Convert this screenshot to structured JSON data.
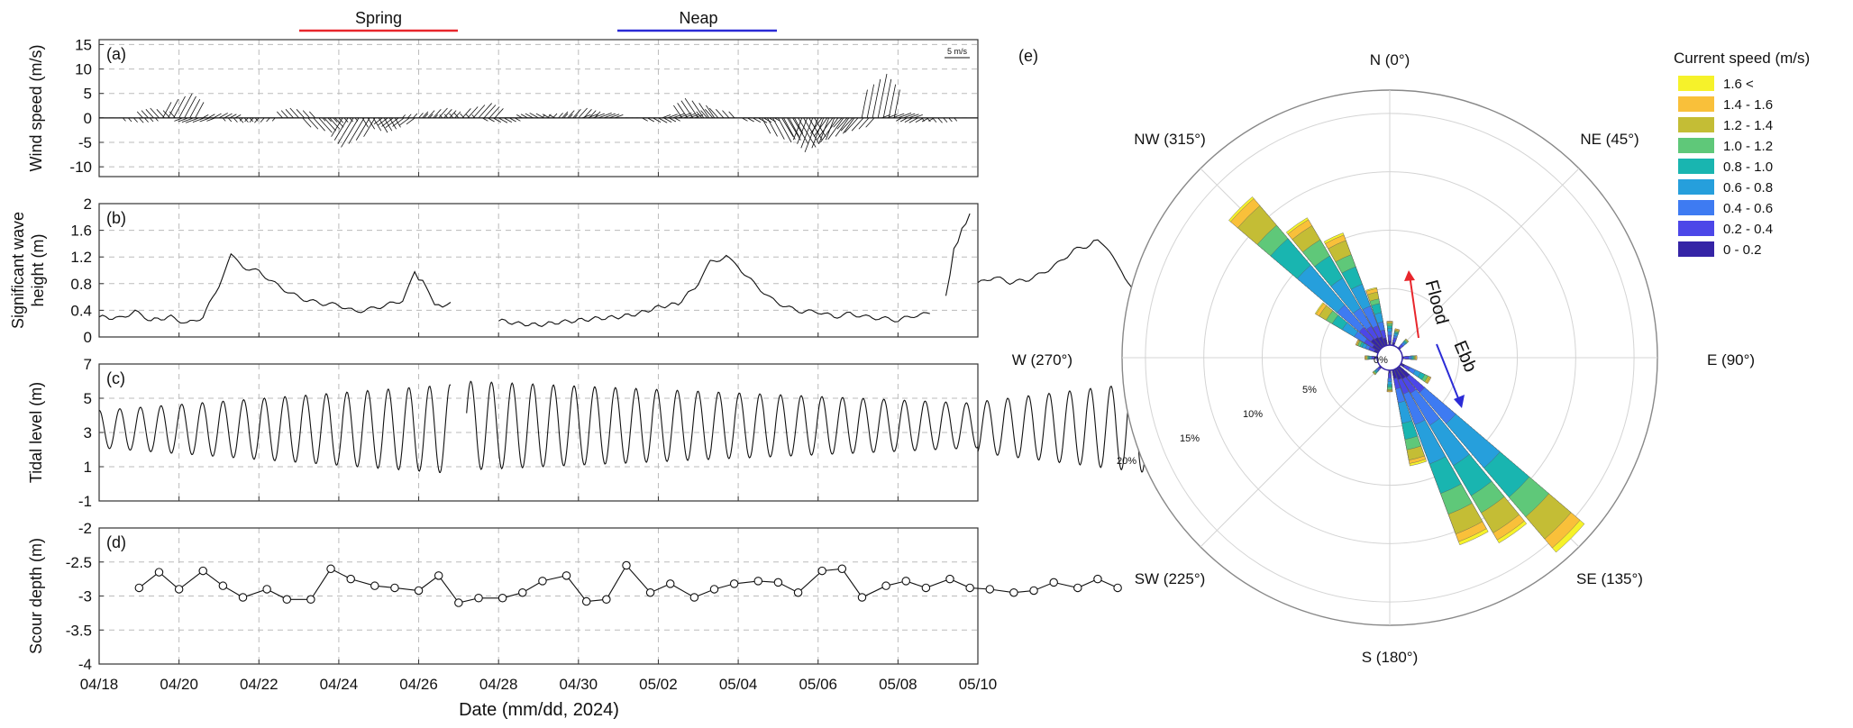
{
  "top_labels": {
    "spring": {
      "text": "Spring",
      "color": "#e8262c"
    },
    "neap": {
      "text": "Neap",
      "color": "#2b2bd6"
    }
  },
  "x_axis": {
    "title": "Date (mm/dd, 2024)",
    "ticks": [
      "04/18",
      "04/20",
      "04/22",
      "04/24",
      "04/26",
      "04/28",
      "04/30",
      "05/02",
      "05/04",
      "05/06",
      "05/08",
      "05/10"
    ]
  },
  "chart_data": [
    {
      "type": "line",
      "panel": "(a)",
      "ylabel": "Wind speed (m/s)",
      "yticks": [
        15,
        10,
        5,
        0,
        -5,
        -10
      ],
      "ylim": [
        -12,
        16
      ],
      "grid": true,
      "scale_label": "5 m/s",
      "note": "stick plot of wind vectors",
      "series": [
        {
          "x_day": [
            1.0,
            1.5,
            2.0,
            2.5,
            3.0,
            3.5,
            4.0,
            4.5,
            5.0,
            5.5,
            6.0,
            6.5,
            7.0,
            7.5,
            8.0,
            8.5,
            9.0,
            9.5,
            10.0,
            10.5,
            11.0,
            11.5,
            12.0,
            12.5,
            13.0,
            13.5,
            14.0,
            14.5,
            15.0,
            15.5,
            16.0,
            16.5,
            17.0,
            17.5,
            18.0,
            18.5,
            19.0,
            19.5,
            20.0,
            20.5,
            21.0
          ],
          "u": [
            1,
            -2,
            3,
            -3,
            2,
            1,
            -1,
            2,
            -2,
            3,
            1,
            -4,
            2,
            -3,
            1,
            2,
            -1,
            3,
            2,
            -3,
            -2,
            1,
            2,
            3,
            -1,
            -2,
            2,
            3,
            -3,
            -2,
            1,
            2,
            3,
            4,
            -3,
            -4,
            -3,
            2,
            3,
            -2,
            1
          ],
          "v": [
            -1,
            2,
            5,
            -1,
            1,
            -1,
            -1,
            0,
            2,
            -3,
            -1,
            -6,
            -3,
            -2,
            1,
            2,
            1,
            3,
            -1,
            0,
            1,
            1,
            2,
            1,
            0,
            0,
            -1,
            1,
            4,
            2,
            0,
            -1,
            -5,
            -6,
            -7,
            -5,
            -3,
            9,
            1,
            -1,
            -1
          ]
        }
      ]
    },
    {
      "type": "line",
      "panel": "(b)",
      "ylabel": "Significant wave height (m)",
      "ylabel_lines": [
        "Significant wave",
        "height (m)"
      ],
      "yticks": [
        2,
        1.6,
        1.2,
        0.8,
        0.4,
        0
      ],
      "ylim": [
        0,
        2
      ],
      "grid": true,
      "series": [
        {
          "segments": [
            [
              [
                0.0,
                0.3
              ],
              [
                0.5,
                0.28
              ],
              [
                0.9,
                0.38
              ],
              [
                1.3,
                0.25
              ],
              [
                1.8,
                0.3
              ],
              [
                2.2,
                0.2
              ],
              [
                2.6,
                0.3
              ],
              [
                3.0,
                0.78
              ],
              [
                3.3,
                1.22
              ],
              [
                3.6,
                1.05
              ],
              [
                4.0,
                0.98
              ],
              [
                4.4,
                0.8
              ],
              [
                4.8,
                0.65
              ],
              [
                5.2,
                0.55
              ],
              [
                5.6,
                0.5
              ],
              [
                6.0,
                0.48
              ],
              [
                6.4,
                0.38
              ],
              [
                6.8,
                0.42
              ],
              [
                7.2,
                0.48
              ],
              [
                7.6,
                0.55
              ],
              [
                7.9,
                0.95
              ],
              [
                8.1,
                0.82
              ],
              [
                8.4,
                0.5
              ],
              [
                8.6,
                0.45
              ],
              [
                8.8,
                0.52
              ]
            ],
            [
              [
                10.0,
                0.25
              ],
              [
                10.5,
                0.2
              ],
              [
                11.0,
                0.18
              ],
              [
                11.5,
                0.22
              ],
              [
                12.0,
                0.25
              ],
              [
                12.5,
                0.28
              ],
              [
                13.0,
                0.3
              ],
              [
                13.5,
                0.35
              ],
              [
                14.0,
                0.45
              ],
              [
                14.5,
                0.5
              ],
              [
                15.0,
                0.8
              ],
              [
                15.3,
                1.12
              ],
              [
                15.7,
                1.2
              ],
              [
                16.0,
                1.05
              ],
              [
                16.4,
                0.8
              ],
              [
                16.8,
                0.58
              ],
              [
                17.2,
                0.45
              ],
              [
                17.6,
                0.38
              ],
              [
                18.0,
                0.38
              ],
              [
                18.4,
                0.3
              ],
              [
                18.8,
                0.35
              ],
              [
                19.2,
                0.3
              ],
              [
                19.6,
                0.28
              ],
              [
                20.0,
                0.25
              ],
              [
                20.4,
                0.32
              ],
              [
                20.8,
                0.35
              ]
            ]
          ]
        },
        {
          "segments": [
            [
              [
                21.2,
                0.6
              ],
              [
                21.4,
                1.3
              ],
              [
                21.6,
                1.6
              ],
              [
                21.8,
                1.85
              ]
            ],
            [
              [
                22.0,
                0.8
              ],
              [
                22.4,
                0.9
              ],
              [
                22.8,
                0.82
              ],
              [
                23.2,
                0.85
              ],
              [
                23.6,
                0.95
              ],
              [
                24.0,
                1.1
              ],
              [
                24.4,
                1.3
              ],
              [
                24.8,
                1.38
              ],
              [
                25.0,
                1.48
              ],
              [
                25.3,
                1.25
              ],
              [
                25.6,
                1.0
              ],
              [
                26.0,
                0.55
              ],
              [
                26.4,
                0.4
              ],
              [
                26.8,
                0.3
              ],
              [
                27.2,
                0.22
              ]
            ],
            [
              [
                27.8,
                0.08
              ],
              [
                28.0,
                0.05
              ],
              [
                28.2,
                0.05
              ]
            ]
          ]
        }
      ]
    },
    {
      "type": "line",
      "panel": "(c)",
      "ylabel": "Tidal level (m)",
      "yticks": [
        7,
        5,
        3,
        1,
        -1
      ],
      "ylim": [
        -1,
        7
      ],
      "grid": true,
      "series": [
        {
          "segments": [
            {
              "start_day": 0.0,
              "end_day": 8.8,
              "mean": 3.2,
              "amp_start": 1.1,
              "amp_end": 2.6,
              "period_days": 0.517
            },
            {
              "start_day": 9.2,
              "end_day": 22.0,
              "mean": 3.4,
              "amp_start": 2.6,
              "amp_end": 1.3,
              "period_days": 0.517
            },
            {
              "start_day": 22.0,
              "end_day": 28.6,
              "mean": 3.3,
              "amp_start": 1.5,
              "amp_end": 3.3,
              "period_days": 0.517
            }
          ]
        }
      ]
    },
    {
      "type": "scatter",
      "panel": "(d)",
      "ylabel": "Scour depth (m)",
      "yticks": [
        -2,
        -2.5,
        -3,
        -3.5,
        -4
      ],
      "ylim": [
        -4,
        -2
      ],
      "grid": true,
      "x_day": [
        1.0,
        1.5,
        2.0,
        2.6,
        3.1,
        3.6,
        4.2,
        4.7,
        5.3,
        5.8,
        6.3,
        6.9,
        7.4,
        8.0,
        8.5,
        9.0,
        9.5,
        10.1,
        10.6,
        11.1,
        11.7,
        12.2,
        12.7,
        13.2,
        13.8,
        14.3,
        14.9,
        15.4,
        15.9,
        16.5,
        17.0,
        17.5,
        18.1,
        18.6,
        19.1,
        19.7,
        20.2,
        20.7,
        21.3,
        21.8,
        22.3,
        22.9,
        23.4,
        23.9,
        24.5,
        25.0,
        25.5
      ],
      "values": [
        -2.88,
        -2.65,
        -2.9,
        -2.63,
        -2.85,
        -3.02,
        -2.9,
        -3.05,
        -3.05,
        -2.6,
        -2.75,
        -2.85,
        -2.88,
        -2.92,
        -2.7,
        -3.1,
        -3.03,
        -3.03,
        -2.95,
        -2.78,
        -2.7,
        -3.08,
        -3.05,
        -2.55,
        -2.95,
        -2.82,
        -3.02,
        -2.9,
        -2.82,
        -2.78,
        -2.8,
        -2.95,
        -2.63,
        -2.6,
        -3.02,
        -2.85,
        -2.78,
        -2.88,
        -2.75,
        -2.88,
        -2.9,
        -2.95,
        -2.92,
        -2.8,
        -2.88,
        -2.75,
        -2.88
      ]
    },
    {
      "type": "bar",
      "panel": "(e)",
      "note": "polar rose of current direction and speed",
      "direction_labels": {
        "N": "N (0°)",
        "NE": "NE (45°)",
        "E": "E (90°)",
        "SE": "SE (135°)",
        "S": "S (180°)",
        "SW": "SW (225°)",
        "W": "W (270°)",
        "NW": "NW (315°)"
      },
      "radial_labels": [
        "0%",
        "5%",
        "10%",
        "15%",
        "20%"
      ],
      "annotations": {
        "flood": "Flood",
        "ebb": "Ebb",
        "flood_color": "#e8262c",
        "ebb_color": "#2b2bd6"
      },
      "legend_title": "Current speed (m/s)",
      "legend_placement": "top-right",
      "bins": [
        "1.6 <",
        "1.4 - 1.6",
        "1.2 - 1.4",
        "1.0 - 1.2",
        "0.8 - 1.0",
        "0.6 - 0.8",
        "0.4 - 0.6",
        "0.2 - 0.4",
        "0 - 0.2"
      ],
      "colors": [
        "#f6f22a",
        "#f9c03a",
        "#c4bd35",
        "#5fc879",
        "#19b5b0",
        "#269fdc",
        "#3e7bf2",
        "#4c47e8",
        "#3524a6"
      ],
      "sectors": [
        {
          "dir": 315,
          "cumulative": [
            17.2,
            17.0,
            16.2,
            14.0,
            12.5,
            9.5,
            5.0,
            2.5,
            1.2
          ]
        },
        {
          "dir": 325,
          "cumulative": [
            13.0,
            12.8,
            12.2,
            10.8,
            9.2,
            7.0,
            4.0,
            2.2,
            1.1
          ]
        },
        {
          "dir": 335,
          "cumulative": [
            10.5,
            10.3,
            9.8,
            8.5,
            7.4,
            5.8,
            3.8,
            2.0,
            1.0
          ]
        },
        {
          "dir": 345,
          "cumulative": [
            5.2,
            5.1,
            4.8,
            4.2,
            3.8,
            3.0,
            2.2,
            1.5,
            0.8
          ]
        },
        {
          "dir": 0,
          "cumulative": [
            2.2,
            2.2,
            2.1,
            2.0,
            1.8,
            1.6,
            1.3,
            1.0,
            0.5
          ]
        },
        {
          "dir": 15,
          "cumulative": [
            1.6,
            1.6,
            1.5,
            1.4,
            1.3,
            1.2,
            1.0,
            0.8,
            0.4
          ]
        },
        {
          "dir": 45,
          "cumulative": [
            1.2,
            1.2,
            1.2,
            1.1,
            1.0,
            0.9,
            0.8,
            0.6,
            0.3
          ]
        },
        {
          "dir": 90,
          "cumulative": [
            1.4,
            1.4,
            1.3,
            1.2,
            1.1,
            1.0,
            0.9,
            0.7,
            0.3
          ]
        },
        {
          "dir": 120,
          "cumulative": [
            3.0,
            3.0,
            2.9,
            2.7,
            2.4,
            2.0,
            1.5,
            1.0,
            0.5
          ]
        },
        {
          "dir": 135,
          "cumulative": [
            21.0,
            20.5,
            19.5,
            17.0,
            14.8,
            11.5,
            6.5,
            3.0,
            1.3
          ]
        },
        {
          "dir": 145,
          "cumulative": [
            17.5,
            17.2,
            16.5,
            14.5,
            12.8,
            9.8,
            5.8,
            2.6,
            1.2
          ]
        },
        {
          "dir": 155,
          "cumulative": [
            16.2,
            15.9,
            15.2,
            13.4,
            11.5,
            8.8,
            5.2,
            2.4,
            1.1
          ]
        },
        {
          "dir": 165,
          "cumulative": [
            8.5,
            8.3,
            8.0,
            7.1,
            6.2,
            4.8,
            3.0,
            1.8,
            0.9
          ]
        },
        {
          "dir": 180,
          "cumulative": [
            2.0,
            2.0,
            1.9,
            1.8,
            1.6,
            1.4,
            1.1,
            0.8,
            0.4
          ]
        },
        {
          "dir": 225,
          "cumulative": [
            1.0,
            1.0,
            1.0,
            0.9,
            0.8,
            0.7,
            0.6,
            0.5,
            0.3
          ]
        },
        {
          "dir": 270,
          "cumulative": [
            1.2,
            1.2,
            1.1,
            1.0,
            0.9,
            0.8,
            0.7,
            0.6,
            0.3
          ]
        },
        {
          "dir": 295,
          "cumulative": [
            2.2,
            2.2,
            2.1,
            2.0,
            1.8,
            1.6,
            1.3,
            1.0,
            0.5
          ]
        },
        {
          "dir": 305,
          "cumulative": [
            6.5,
            6.4,
            6.1,
            5.4,
            4.8,
            3.8,
            2.6,
            1.6,
            0.8
          ]
        }
      ]
    }
  ]
}
